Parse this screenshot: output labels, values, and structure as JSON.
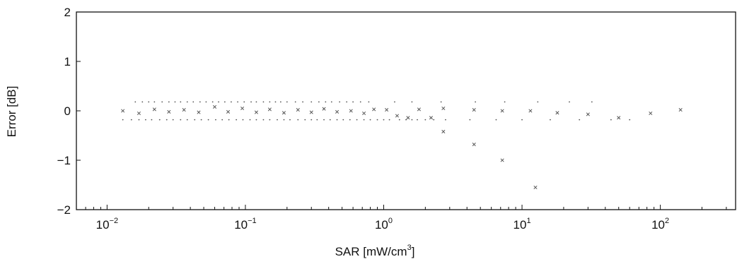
{
  "chart_data": {
    "type": "scatter",
    "title": "",
    "xlabel": "SAR [mW/cm",
    "xlabel_sup": "3",
    "xlabel_suffix": "]",
    "ylabel": "Error [dB]",
    "xscale": "log",
    "xlim": [
      0.006,
      350
    ],
    "ylim": [
      -2,
      2
    ],
    "grid": false,
    "legend": "none",
    "marker_color": "#555555",
    "x_ticks": [
      {
        "value": 0.01,
        "base": "10",
        "exp": "−2"
      },
      {
        "value": 0.1,
        "base": "10",
        "exp": "−1"
      },
      {
        "value": 1,
        "base": "10",
        "exp": "0"
      },
      {
        "value": 10,
        "base": "10",
        "exp": "1"
      },
      {
        "value": 100,
        "base": "10",
        "exp": "2"
      }
    ],
    "y_ticks": [
      {
        "value": 2,
        "label": "2"
      },
      {
        "value": 1,
        "label": "1"
      },
      {
        "value": 0,
        "label": "0"
      },
      {
        "value": -1,
        "label": "−1"
      },
      {
        "value": -2,
        "label": "−2"
      }
    ],
    "series": [
      {
        "marker": "x",
        "points": [
          [
            0.013,
            0.0
          ],
          [
            0.017,
            -0.05
          ],
          [
            0.022,
            0.03
          ],
          [
            0.028,
            -0.02
          ],
          [
            0.036,
            0.02
          ],
          [
            0.046,
            -0.03
          ],
          [
            0.06,
            0.08
          ],
          [
            0.075,
            -0.02
          ],
          [
            0.095,
            0.05
          ],
          [
            0.12,
            -0.03
          ],
          [
            0.15,
            0.03
          ],
          [
            0.19,
            -0.04
          ],
          [
            0.24,
            0.02
          ],
          [
            0.3,
            -0.03
          ],
          [
            0.37,
            0.04
          ],
          [
            0.46,
            -0.02
          ],
          [
            0.58,
            0.0
          ],
          [
            0.72,
            -0.05
          ],
          [
            0.85,
            0.03
          ],
          [
            1.05,
            0.02
          ],
          [
            1.25,
            -0.1
          ],
          [
            1.5,
            -0.14
          ],
          [
            1.8,
            0.03
          ],
          [
            2.2,
            -0.14
          ],
          [
            2.7,
            0.05
          ],
          [
            2.7,
            -0.42
          ],
          [
            4.5,
            0.02
          ],
          [
            4.5,
            -0.68
          ],
          [
            7.2,
            0.0
          ],
          [
            7.2,
            -1.0
          ],
          [
            11.5,
            0.0
          ],
          [
            12.5,
            -1.55
          ],
          [
            18.0,
            -0.04
          ],
          [
            30.0,
            -0.07
          ],
          [
            50.0,
            -0.14
          ],
          [
            85.0,
            -0.05
          ],
          [
            140.0,
            0.02
          ]
        ]
      },
      {
        "marker": "dot",
        "points": [
          [
            0.016,
            0.18
          ],
          [
            0.018,
            0.18
          ],
          [
            0.02,
            0.18
          ],
          [
            0.022,
            0.18
          ],
          [
            0.025,
            0.18
          ],
          [
            0.028,
            0.18
          ],
          [
            0.031,
            0.18
          ],
          [
            0.034,
            0.18
          ],
          [
            0.038,
            0.18
          ],
          [
            0.042,
            0.18
          ],
          [
            0.047,
            0.18
          ],
          [
            0.052,
            0.18
          ],
          [
            0.058,
            0.18
          ],
          [
            0.064,
            0.18
          ],
          [
            0.071,
            0.18
          ],
          [
            0.079,
            0.18
          ],
          [
            0.088,
            0.18
          ],
          [
            0.098,
            0.18
          ],
          [
            0.11,
            0.18
          ],
          [
            0.12,
            0.18
          ],
          [
            0.135,
            0.18
          ],
          [
            0.15,
            0.18
          ],
          [
            0.165,
            0.18
          ],
          [
            0.18,
            0.18
          ],
          [
            0.2,
            0.18
          ],
          [
            0.23,
            0.18
          ],
          [
            0.26,
            0.18
          ],
          [
            0.3,
            0.18
          ],
          [
            0.34,
            0.18
          ],
          [
            0.38,
            0.18
          ],
          [
            0.42,
            0.18
          ],
          [
            0.48,
            0.18
          ],
          [
            0.54,
            0.18
          ],
          [
            0.6,
            0.18
          ],
          [
            0.68,
            0.18
          ],
          [
            0.78,
            0.18
          ],
          [
            1.2,
            0.18
          ],
          [
            1.6,
            0.18
          ],
          [
            2.6,
            0.18
          ],
          [
            4.6,
            0.18
          ],
          [
            7.5,
            0.18
          ],
          [
            13.0,
            0.18
          ],
          [
            22.0,
            0.18
          ],
          [
            32.0,
            0.18
          ],
          [
            0.013,
            -0.18
          ],
          [
            0.015,
            -0.18
          ],
          [
            0.017,
            -0.18
          ],
          [
            0.019,
            -0.18
          ],
          [
            0.021,
            -0.18
          ],
          [
            0.024,
            -0.18
          ],
          [
            0.027,
            -0.18
          ],
          [
            0.03,
            -0.18
          ],
          [
            0.034,
            -0.18
          ],
          [
            0.038,
            -0.18
          ],
          [
            0.043,
            -0.18
          ],
          [
            0.048,
            -0.18
          ],
          [
            0.054,
            -0.18
          ],
          [
            0.061,
            -0.18
          ],
          [
            0.068,
            -0.18
          ],
          [
            0.076,
            -0.18
          ],
          [
            0.086,
            -0.18
          ],
          [
            0.096,
            -0.18
          ],
          [
            0.108,
            -0.18
          ],
          [
            0.12,
            -0.18
          ],
          [
            0.135,
            -0.18
          ],
          [
            0.15,
            -0.18
          ],
          [
            0.17,
            -0.18
          ],
          [
            0.19,
            -0.18
          ],
          [
            0.21,
            -0.18
          ],
          [
            0.24,
            -0.18
          ],
          [
            0.27,
            -0.18
          ],
          [
            0.3,
            -0.18
          ],
          [
            0.33,
            -0.18
          ],
          [
            0.37,
            -0.18
          ],
          [
            0.41,
            -0.18
          ],
          [
            0.46,
            -0.18
          ],
          [
            0.51,
            -0.18
          ],
          [
            0.57,
            -0.18
          ],
          [
            0.64,
            -0.18
          ],
          [
            0.72,
            -0.18
          ],
          [
            0.8,
            -0.18
          ],
          [
            0.9,
            -0.18
          ],
          [
            1.0,
            -0.18
          ],
          [
            1.1,
            -0.18
          ],
          [
            1.3,
            -0.18
          ],
          [
            1.45,
            -0.18
          ],
          [
            1.6,
            -0.18
          ],
          [
            1.75,
            -0.18
          ],
          [
            2.0,
            -0.18
          ],
          [
            2.3,
            -0.18
          ],
          [
            2.8,
            -0.18
          ],
          [
            4.2,
            -0.18
          ],
          [
            6.5,
            -0.18
          ],
          [
            10.0,
            -0.18
          ],
          [
            16.0,
            -0.18
          ],
          [
            26.0,
            -0.18
          ],
          [
            44.0,
            -0.18
          ],
          [
            60.0,
            -0.18
          ]
        ]
      }
    ]
  }
}
